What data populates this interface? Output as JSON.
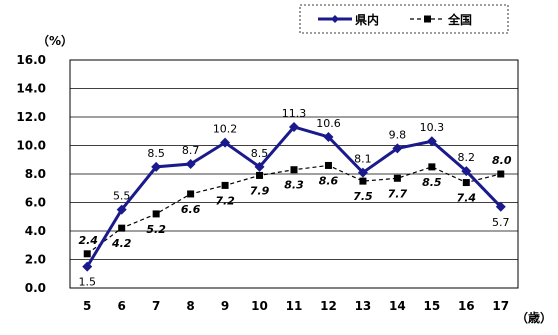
{
  "chart_data": {
    "type": "line",
    "categories": [
      "5",
      "6",
      "7",
      "8",
      "9",
      "10",
      "11",
      "12",
      "13",
      "14",
      "15",
      "16",
      "17"
    ],
    "series": [
      {
        "name": "県内",
        "color": "#1a1a8c",
        "style": "solid",
        "marker": "diamond",
        "values": [
          1.5,
          5.5,
          8.5,
          8.7,
          10.2,
          8.5,
          11.3,
          10.6,
          8.1,
          9.8,
          10.3,
          8.2,
          5.7
        ],
        "labels": [
          "1.5",
          "5.5",
          "8.5",
          "8.7",
          "10.2",
          "8.5",
          "11.3",
          "10.6",
          "8.1",
          "9.8",
          "10.3",
          "8.2",
          "5.7"
        ]
      },
      {
        "name": "全国",
        "color": "#000000",
        "style": "dashed",
        "marker": "square",
        "values": [
          2.4,
          4.2,
          5.2,
          6.6,
          7.2,
          7.9,
          8.3,
          8.6,
          7.5,
          7.7,
          8.5,
          7.4,
          8.0
        ],
        "labels": [
          "2.4",
          "4.2",
          "5.2",
          "6.6",
          "7.2",
          "7.9",
          "8.3",
          "8.6",
          "7.5",
          "7.7",
          "8.5",
          "7.4",
          "8.0"
        ]
      }
    ],
    "ylabel": "（%）",
    "xlabel": "（歳）",
    "ylim": [
      0,
      16
    ],
    "yticks": [
      "0.0",
      "2.0",
      "4.0",
      "6.0",
      "8.0",
      "10.0",
      "12.0",
      "14.0",
      "16.0"
    ],
    "grid": true,
    "legend_position": "top-right"
  }
}
